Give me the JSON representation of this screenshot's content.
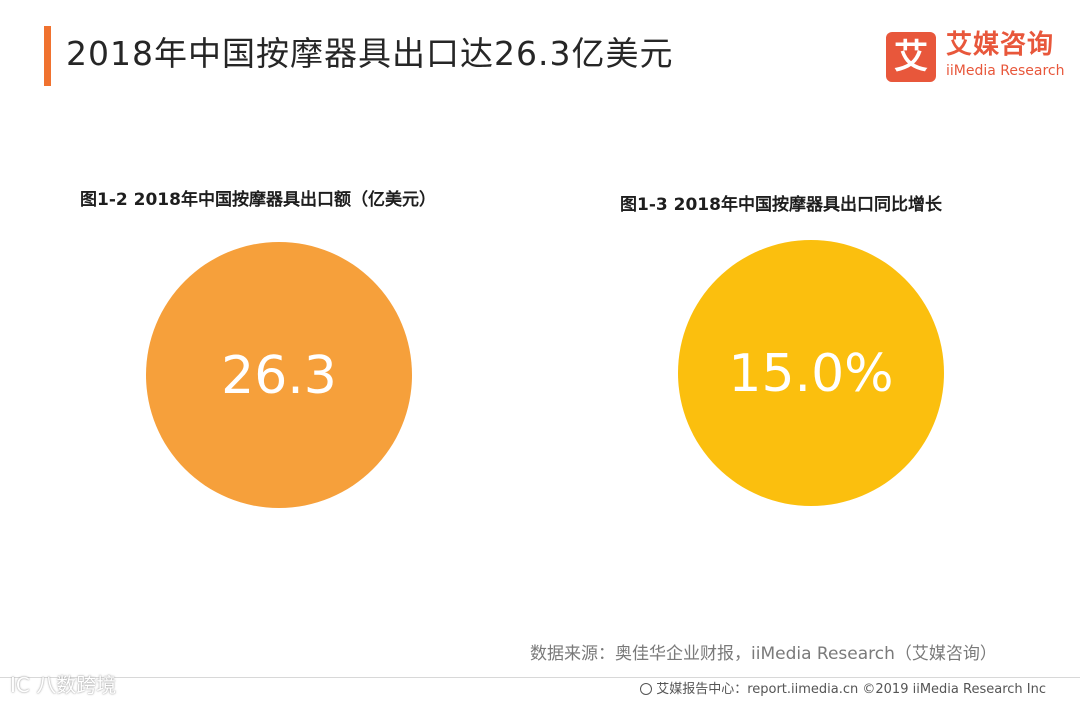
{
  "header": {
    "title": "2018年中国按摩器具出口达26.3亿美元",
    "accent_color": "#f0722f"
  },
  "logo": {
    "mark": "艾",
    "name_cn": "艾媒咨询",
    "name_en": "iiMedia Research",
    "color": "#e8573b"
  },
  "chart_data": [
    {
      "type": "bubble",
      "title": "图1-2 2018年中国按摩器具出口额（亿美元）",
      "values": [
        26.3
      ],
      "labels": [
        "26.3"
      ],
      "color": "#f6a03b"
    },
    {
      "type": "bubble",
      "title": "图1-3 2018年中国按摩器具出口同比增长",
      "values": [
        15.0
      ],
      "labels": [
        "15.0%"
      ],
      "color": "#fbbf0e"
    }
  ],
  "source": "数据来源：奥佳华企业财报，iiMedia Research（艾媒咨询）",
  "footer": "艾媒报告中心：report.iimedia.cn ©2019  iiMedia Research  Inc",
  "watermark": "IC 八数跨境"
}
